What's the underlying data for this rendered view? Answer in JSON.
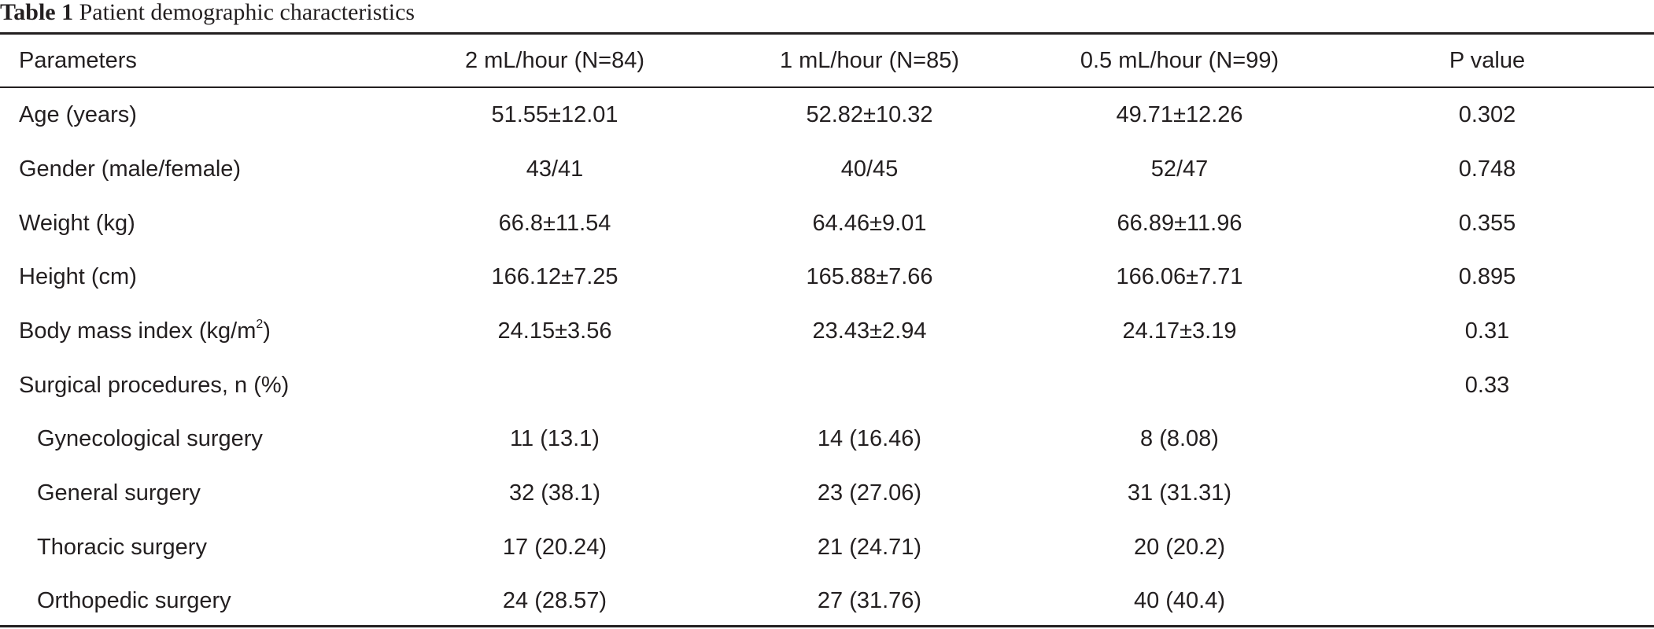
{
  "caption": {
    "label": "Table 1",
    "title": "Patient demographic characteristics"
  },
  "table": {
    "headers": [
      "Parameters",
      "2 mL/hour (N=84)",
      "1 mL/hour (N=85)",
      "0.5 mL/hour (N=99)",
      "P value"
    ],
    "rows": [
      {
        "param": "Age (years)",
        "v2": "51.55±12.01",
        "v1": "52.82±10.32",
        "v05": "49.71±12.26",
        "p": "0.302"
      },
      {
        "param": "Gender (male/female)",
        "v2": "43/41",
        "v1": "40/45",
        "v05": "52/47",
        "p": "0.748"
      },
      {
        "param": "Weight (kg)",
        "v2": "66.8±11.54",
        "v1": "64.46±9.01",
        "v05": "66.89±11.96",
        "p": "0.355"
      },
      {
        "param": "Height (cm)",
        "v2": "166.12±7.25",
        "v1": "165.88±7.66",
        "v05": "166.06±7.71",
        "p": "0.895"
      },
      {
        "param": "Body mass index (kg/m",
        "param_sup": "2",
        "param_tail": ")",
        "v2": "24.15±3.56",
        "v1": "23.43±2.94",
        "v05": "24.17±3.19",
        "p": "0.31"
      },
      {
        "param": "Surgical procedures, n (%)",
        "v2": "",
        "v1": "",
        "v05": "",
        "p": "0.33"
      },
      {
        "param": "Gynecological surgery",
        "v2": "11 (13.1)",
        "v1": "14 (16.46)",
        "v05": "8 (8.08)",
        "p": ""
      },
      {
        "param": "General surgery",
        "v2": "32 (38.1)",
        "v1": "23 (27.06)",
        "v05": "31 (31.31)",
        "p": ""
      },
      {
        "param": "Thoracic surgery",
        "v2": "17 (20.24)",
        "v1": "21 (24.71)",
        "v05": "20 (20.2)",
        "p": ""
      },
      {
        "param": "Orthopedic surgery",
        "v2": "24 (28.57)",
        "v1": "27 (31.76)",
        "v05": "40 (40.4)",
        "p": ""
      }
    ]
  }
}
